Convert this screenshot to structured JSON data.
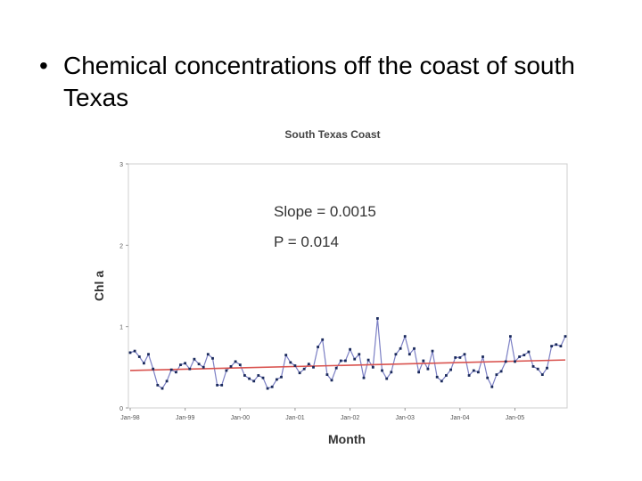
{
  "slide": {
    "bullet_symbol": "•",
    "bullet_text": "Chemical concentrations off the coast of south Texas"
  },
  "chart_data": {
    "type": "line",
    "title": "South Texas Coast",
    "xlabel": "Month",
    "ylabel": "Chl a",
    "ylim": [
      0,
      3
    ],
    "yticks": [
      "0",
      "1",
      "2",
      "3"
    ],
    "xticks": [
      "Jan-98",
      "Jan-99",
      "Jan-00",
      "Jan-01",
      "Jan-02",
      "Jan-03",
      "Jan-04",
      "Jan-05"
    ],
    "annotations": [
      "Slope = 0.0015",
      "P = 0.014"
    ],
    "grid": false,
    "series": [
      {
        "color": "#7b7fc4",
        "marker_color": "#1a2a5c",
        "values": [
          0.68,
          0.7,
          0.63,
          0.55,
          0.66,
          0.48,
          0.28,
          0.24,
          0.33,
          0.47,
          0.44,
          0.53,
          0.55,
          0.48,
          0.6,
          0.54,
          0.5,
          0.66,
          0.61,
          0.28,
          0.28,
          0.46,
          0.51,
          0.57,
          0.53,
          0.4,
          0.36,
          0.33,
          0.4,
          0.37,
          0.24,
          0.26,
          0.35,
          0.38,
          0.65,
          0.56,
          0.52,
          0.43,
          0.48,
          0.54,
          0.5,
          0.75,
          0.84,
          0.41,
          0.34,
          0.49,
          0.58,
          0.58,
          0.72,
          0.6,
          0.66,
          0.37,
          0.59,
          0.5,
          1.1,
          0.46,
          0.36,
          0.44,
          0.66,
          0.73,
          0.88,
          0.66,
          0.73,
          0.44,
          0.58,
          0.48,
          0.7,
          0.38,
          0.33,
          0.4,
          0.47,
          0.62,
          0.62,
          0.66,
          0.4,
          0.46,
          0.44,
          0.63,
          0.37,
          0.26,
          0.41,
          0.45,
          0.57,
          0.88,
          0.57,
          0.63,
          0.65,
          0.69,
          0.51,
          0.48,
          0.41,
          0.49,
          0.76,
          0.78,
          0.76,
          0.88
        ]
      },
      {
        "type": "trend",
        "color": "#d9534f",
        "start": 0.46,
        "end": 0.59
      }
    ]
  }
}
